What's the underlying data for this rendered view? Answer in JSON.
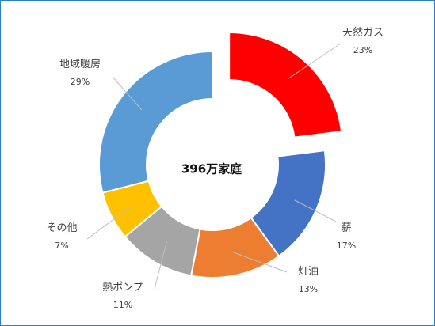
{
  "chart_data": {
    "type": "pie",
    "variant": "donut",
    "center_label": "396万家庭",
    "slices": [
      {
        "name": "天然ガス",
        "value": 23,
        "pct_label": "23%",
        "color": "#ff0000",
        "exploded": true
      },
      {
        "name": "薪",
        "value": 17,
        "pct_label": "17%",
        "color": "#4472c4",
        "exploded": false
      },
      {
        "name": "灯油",
        "value": 13,
        "pct_label": "13%",
        "color": "#ed7d31",
        "exploded": false
      },
      {
        "name": "熱ポンプ",
        "value": 11,
        "pct_label": "11%",
        "color": "#a5a5a5",
        "exploded": false
      },
      {
        "name": "その他",
        "value": 7,
        "pct_label": "7%",
        "color": "#ffc000",
        "exploded": false
      },
      {
        "name": "地域暖房",
        "value": 29,
        "pct_label": "29%",
        "color": "#5b9bd5",
        "exploded": false
      }
    ]
  }
}
